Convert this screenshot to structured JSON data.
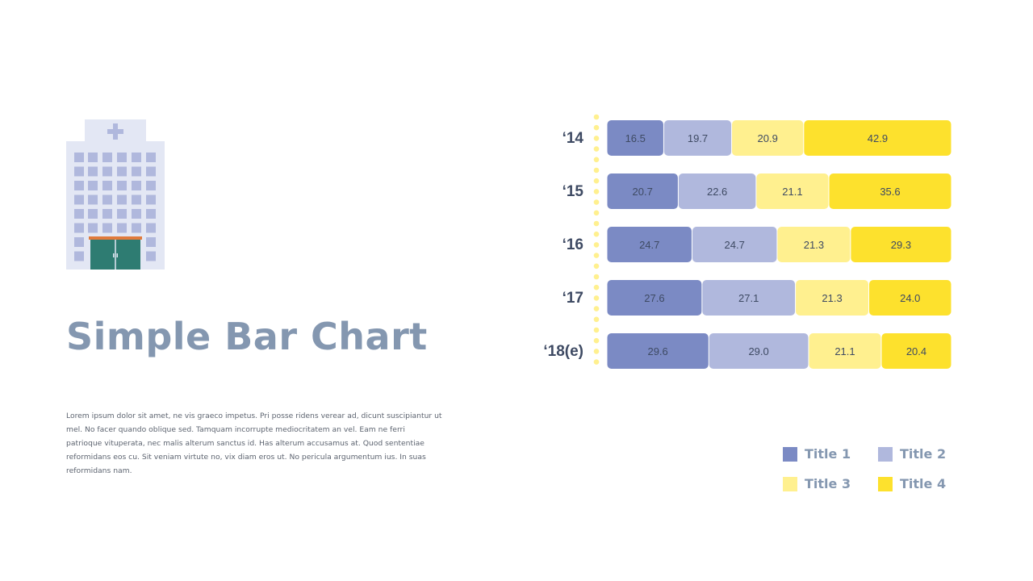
{
  "slide": {
    "title": "Simple Bar Chart",
    "body": "Lorem ipsum dolor sit amet, ne vis graeco impetus. Pri posse ridens verear ad, dicunt suscipiantur ut mel. No facer quando oblique sed. Tamquam incorrupte mediocritatem an vel. Eam ne ferri patrioque vituperata, nec malis alterum sanctus id. Has alterum accusamus at. Quod sententiae reformidans eos cu. Sit veniam virtute no, vix diam eros ut. No pericula argumentum ius. In suas reformidans nam."
  },
  "icons": {
    "illustration": "hospital-building-icon"
  },
  "colors": {
    "title": "#8497b0",
    "series": [
      "#7b8ac4",
      "#b0b8dd",
      "#fff08f",
      "#fde12d"
    ],
    "dots": "#fff08f",
    "bar_text": "#3e4a63",
    "category_text": "#3e4a63"
  },
  "chart_data": {
    "type": "bar",
    "orientation": "horizontal",
    "stacked": true,
    "categories": [
      "‘14",
      "‘15",
      "‘16",
      "‘17",
      "‘18(e)"
    ],
    "series": [
      {
        "name": "Title 1",
        "values": [
          16.5,
          20.7,
          24.7,
          27.6,
          29.6
        ]
      },
      {
        "name": "Title 2",
        "values": [
          19.7,
          22.6,
          24.7,
          27.1,
          29.0
        ]
      },
      {
        "name": "Title 3",
        "values": [
          20.9,
          21.1,
          21.3,
          21.3,
          21.1
        ]
      },
      {
        "name": "Title 4",
        "values": [
          42.9,
          35.6,
          29.3,
          24.0,
          20.4
        ]
      }
    ],
    "data_labels": [
      [
        "16.5",
        "19.7",
        "20.9",
        "42.9"
      ],
      [
        "20.7",
        "22.6",
        "21.1",
        "35.6"
      ],
      [
        "24.7",
        "24.7",
        "21.3",
        "29.3"
      ],
      [
        "27.6",
        "27.1",
        "21.3",
        "24.0"
      ],
      [
        "29.6",
        "29.0",
        "21.1",
        "20.4"
      ]
    ],
    "xlim": [
      0,
      100
    ],
    "grid": false,
    "legend_position": "bottom-right"
  },
  "legend": {
    "items": [
      {
        "label": "Title 1"
      },
      {
        "label": "Title 2"
      },
      {
        "label": "Title 3"
      },
      {
        "label": "Title 4"
      }
    ]
  }
}
